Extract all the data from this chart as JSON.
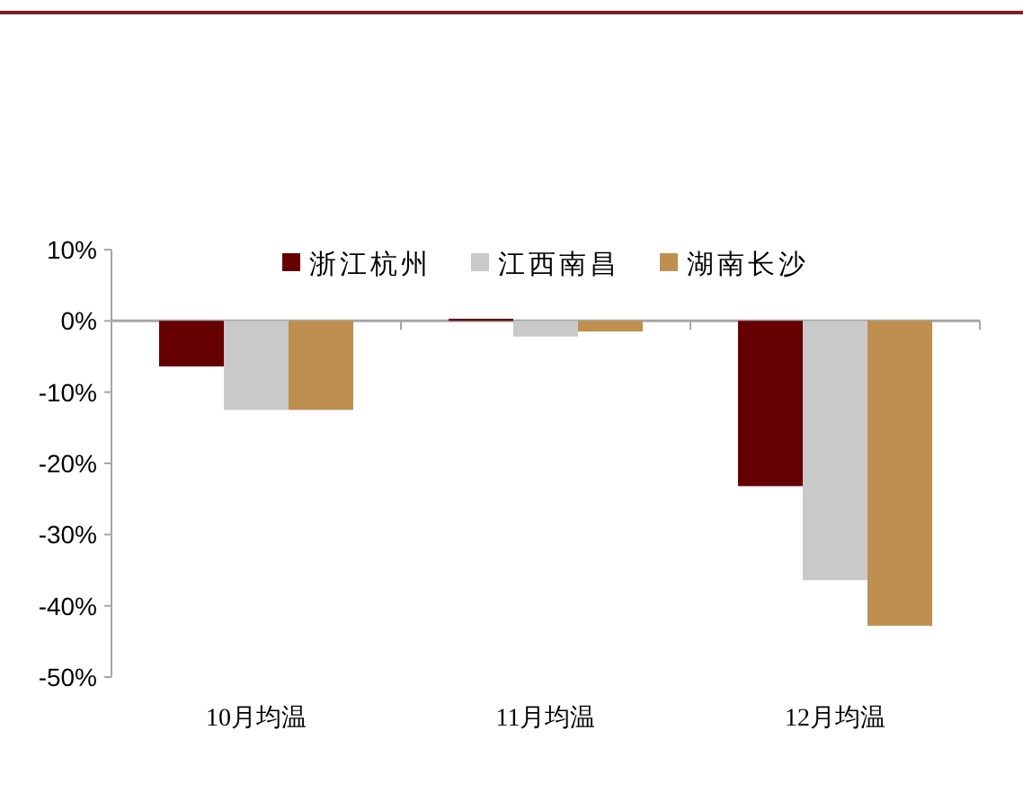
{
  "chart_data": {
    "type": "bar",
    "categories": [
      "10月均温",
      "11月均温",
      "12月均温"
    ],
    "series": [
      {
        "name": "浙江杭州",
        "color": "#660000",
        "values": [
          -6.4,
          0.3,
          -23.2
        ]
      },
      {
        "name": "江西南昌",
        "color": "#c9c9c9",
        "values": [
          -12.5,
          -2.2,
          -36.4
        ]
      },
      {
        "name": "湖南长沙",
        "color": "#bf8f4f",
        "values": [
          -12.5,
          -1.5,
          -42.8
        ]
      }
    ],
    "ylim": [
      -50,
      10
    ],
    "yticks": [
      {
        "value": 10,
        "label": "10%"
      },
      {
        "value": 0,
        "label": "0%"
      },
      {
        "value": -10,
        "label": "-10%"
      },
      {
        "value": -20,
        "label": "-20%"
      },
      {
        "value": -30,
        "label": "-30%"
      },
      {
        "value": -40,
        "label": "-40%"
      },
      {
        "value": -50,
        "label": "-50%"
      }
    ],
    "legend": "top"
  }
}
